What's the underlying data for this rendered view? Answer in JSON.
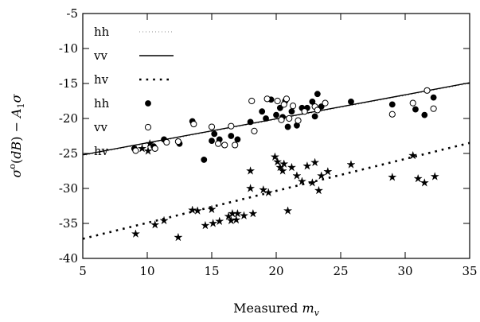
{
  "chart_data": {
    "type": "scatter",
    "xlabel": "Measured m_v",
    "ylabel": "σ°(dB) − A₁σ",
    "xlim": [
      5,
      35
    ],
    "ylim": [
      -40,
      -5
    ],
    "xticks": [
      5,
      10,
      15,
      20,
      25,
      30,
      35
    ],
    "yticks": [
      -40,
      -35,
      -30,
      -25,
      -20,
      -15,
      -10,
      -5
    ],
    "grid": false,
    "legend_placement": "top-left",
    "fit_lines": [
      {
        "name": "hh",
        "style": "fine-dotted",
        "x": [
          5,
          35
        ],
        "y": [
          -25.3,
          -15.0
        ]
      },
      {
        "name": "vv",
        "style": "solid",
        "x": [
          5,
          35
        ],
        "y": [
          -25.2,
          -14.9
        ]
      },
      {
        "name": "hv",
        "style": "dotted",
        "x": [
          5,
          35
        ],
        "y": [
          -37.2,
          -23.5
        ]
      }
    ],
    "series": [
      {
        "name": "hh",
        "marker": "filled-circle",
        "points": [
          [
            9.0,
            -24.3
          ],
          [
            10.5,
            -24.0
          ],
          [
            11.3,
            -23.0
          ],
          [
            12.5,
            -23.6
          ],
          [
            13.5,
            -20.4
          ],
          [
            14.4,
            -25.9
          ],
          [
            15.0,
            -23.2
          ],
          [
            15.2,
            -22.2
          ],
          [
            15.6,
            -23.0
          ],
          [
            16.5,
            -22.5
          ],
          [
            17.0,
            -23.0
          ],
          [
            18.0,
            -20.5
          ],
          [
            18.9,
            -19.0
          ],
          [
            19.2,
            -20.0
          ],
          [
            19.6,
            -17.3
          ],
          [
            20.0,
            -19.5
          ],
          [
            20.3,
            -18.5
          ],
          [
            20.5,
            -19.8
          ],
          [
            20.7,
            -17.5
          ],
          [
            20.9,
            -21.2
          ],
          [
            21.2,
            -19.0
          ],
          [
            21.6,
            -21.0
          ],
          [
            22.0,
            -18.5
          ],
          [
            22.4,
            -18.5
          ],
          [
            22.8,
            -17.6
          ],
          [
            23.0,
            -19.7
          ],
          [
            23.2,
            -16.5
          ],
          [
            23.5,
            -18.3
          ],
          [
            25.8,
            -17.6
          ],
          [
            29.0,
            -18.0
          ],
          [
            30.8,
            -18.7
          ],
          [
            31.5,
            -19.5
          ],
          [
            32.2,
            -17.0
          ]
        ]
      },
      {
        "name": "vv",
        "marker": "open-circle",
        "points": [
          [
            9.1,
            -24.6
          ],
          [
            10.6,
            -24.3
          ],
          [
            11.5,
            -23.4
          ],
          [
            12.4,
            -23.3
          ],
          [
            13.6,
            -20.8
          ],
          [
            15.0,
            -21.2
          ],
          [
            15.5,
            -23.6
          ],
          [
            16.0,
            -23.8
          ],
          [
            16.5,
            -21.1
          ],
          [
            16.8,
            -23.8
          ],
          [
            18.1,
            -17.5
          ],
          [
            18.3,
            -21.8
          ],
          [
            19.3,
            -17.2
          ],
          [
            20.1,
            -17.5
          ],
          [
            20.4,
            -20.2
          ],
          [
            20.6,
            -18.0
          ],
          [
            20.8,
            -17.2
          ],
          [
            21.0,
            -20.0
          ],
          [
            21.3,
            -18.2
          ],
          [
            21.7,
            -20.3
          ],
          [
            22.2,
            -19.0
          ],
          [
            23.0,
            -18.3
          ],
          [
            23.2,
            -18.8
          ],
          [
            23.8,
            -17.8
          ],
          [
            29.0,
            -19.4
          ],
          [
            30.6,
            -17.8
          ],
          [
            31.7,
            -16.0
          ],
          [
            32.2,
            -18.6
          ]
        ]
      },
      {
        "name": "hv",
        "marker": "star",
        "points": [
          [
            9.1,
            -36.5
          ],
          [
            9.6,
            -24.3
          ],
          [
            10.2,
            -23.6
          ],
          [
            10.6,
            -35.2
          ],
          [
            11.3,
            -34.6
          ],
          [
            12.4,
            -37.0
          ],
          [
            13.5,
            -33.1
          ],
          [
            13.9,
            -33.2
          ],
          [
            14.5,
            -35.3
          ],
          [
            15.0,
            -33.0
          ],
          [
            15.1,
            -35.0
          ],
          [
            15.6,
            -34.7
          ],
          [
            16.3,
            -34.0
          ],
          [
            16.5,
            -34.6
          ],
          [
            16.6,
            -33.6
          ],
          [
            16.9,
            -34.5
          ],
          [
            17.0,
            -33.6
          ],
          [
            17.5,
            -33.9
          ],
          [
            18.0,
            -27.5
          ],
          [
            18.0,
            -30.0
          ],
          [
            18.2,
            -33.6
          ],
          [
            19.0,
            -30.2
          ],
          [
            19.4,
            -30.6
          ],
          [
            19.9,
            -25.5
          ],
          [
            20.1,
            -26.2
          ],
          [
            20.3,
            -27.0
          ],
          [
            20.5,
            -27.5
          ],
          [
            20.6,
            -26.5
          ],
          [
            20.9,
            -33.2
          ],
          [
            21.2,
            -27.0
          ],
          [
            21.6,
            -28.2
          ],
          [
            22.0,
            -29.0
          ],
          [
            22.4,
            -26.8
          ],
          [
            22.8,
            -29.2
          ],
          [
            23.0,
            -26.3
          ],
          [
            23.3,
            -30.3
          ],
          [
            23.5,
            -28.2
          ],
          [
            24.0,
            -27.6
          ],
          [
            25.8,
            -26.6
          ],
          [
            29.0,
            -28.4
          ],
          [
            30.6,
            -25.3
          ],
          [
            31.0,
            -28.6
          ],
          [
            31.5,
            -29.2
          ],
          [
            32.3,
            -28.3
          ]
        ]
      }
    ]
  },
  "legend": [
    {
      "label": "hh",
      "kind": "line",
      "style": "fine-dotted"
    },
    {
      "label": "vv",
      "kind": "line",
      "style": "solid"
    },
    {
      "label": "hv",
      "kind": "line",
      "style": "dotted"
    },
    {
      "label": "hh",
      "kind": "marker",
      "marker": "filled-circle"
    },
    {
      "label": "vv",
      "kind": "marker",
      "marker": "open-circle"
    },
    {
      "label": "hv",
      "kind": "marker",
      "marker": "star"
    }
  ]
}
